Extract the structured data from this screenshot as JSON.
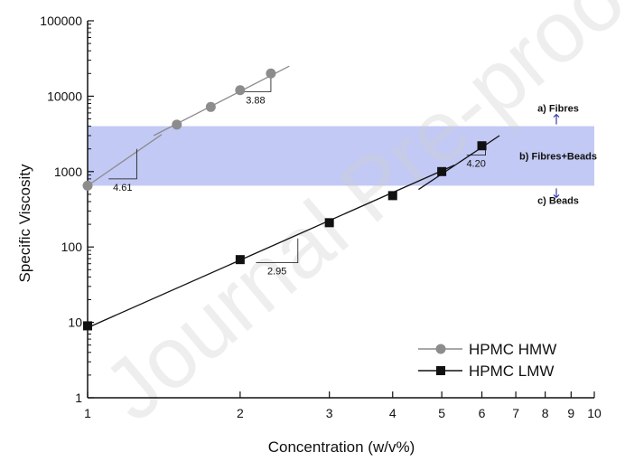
{
  "watermark": "Journal Pre-proof",
  "chart_data": {
    "type": "scatter",
    "xlabel": "Concentration (w/v%)",
    "ylabel": "Specific Viscosity",
    "x_scale": "log",
    "y_scale": "log",
    "xlim": [
      1,
      10
    ],
    "ylim": [
      1,
      100000
    ],
    "x_ticks": [
      1,
      2,
      3,
      4,
      5,
      6,
      7,
      8,
      9,
      10
    ],
    "y_ticks": [
      1,
      10,
      100,
      1000,
      10000,
      100000
    ],
    "legend_position": "bottom-right",
    "series": [
      {
        "name": "HPMC HMW",
        "marker": "circle",
        "color": "#8c8c8c",
        "x": [
          1,
          1.5,
          1.75,
          2,
          2.3
        ],
        "y": [
          650,
          4200,
          7200,
          12000,
          20000
        ]
      },
      {
        "name": "HPMC LMW",
        "marker": "square",
        "color": "#111111",
        "x": [
          1,
          2,
          3,
          4,
          5,
          6
        ],
        "y": [
          9,
          68,
          210,
          480,
          1000,
          2200
        ]
      }
    ],
    "fit_lines": [
      {
        "series": "HPMC HMW",
        "x": [
          1,
          1.4
        ],
        "y": [
          650,
          3100
        ]
      },
      {
        "series": "HPMC HMW",
        "x": [
          1.35,
          2.5
        ],
        "y": [
          3000,
          25000
        ]
      },
      {
        "series": "HPMC LMW",
        "x": [
          1,
          5.3
        ],
        "y": [
          8.5,
          1220
        ]
      },
      {
        "series": "HPMC LMW",
        "x": [
          4.5,
          6.5
        ],
        "y": [
          580,
          3000
        ]
      }
    ],
    "slope_annotations": [
      {
        "label": "4.61",
        "x": [
          1.1,
          1.25
        ],
        "y": [
          800,
          2000
        ]
      },
      {
        "label": "3.88",
        "x": [
          2.0,
          2.3
        ],
        "y": [
          11500,
          19000
        ]
      },
      {
        "label": "2.95",
        "x": [
          2.15,
          2.6
        ],
        "y": [
          62,
          130
        ]
      },
      {
        "label": "4.20",
        "x": [
          5.6,
          6.1
        ],
        "y": [
          1650,
          2500
        ]
      }
    ],
    "shaded_band": {
      "y": [
        650,
        4000
      ],
      "color": "#b7c0f2"
    },
    "region_labels": [
      {
        "text": "a) Fibres",
        "arrow": "up"
      },
      {
        "text": "b) Fibres+Beads",
        "arrow": "none"
      },
      {
        "text": "c) Beads",
        "arrow": "down"
      }
    ]
  }
}
